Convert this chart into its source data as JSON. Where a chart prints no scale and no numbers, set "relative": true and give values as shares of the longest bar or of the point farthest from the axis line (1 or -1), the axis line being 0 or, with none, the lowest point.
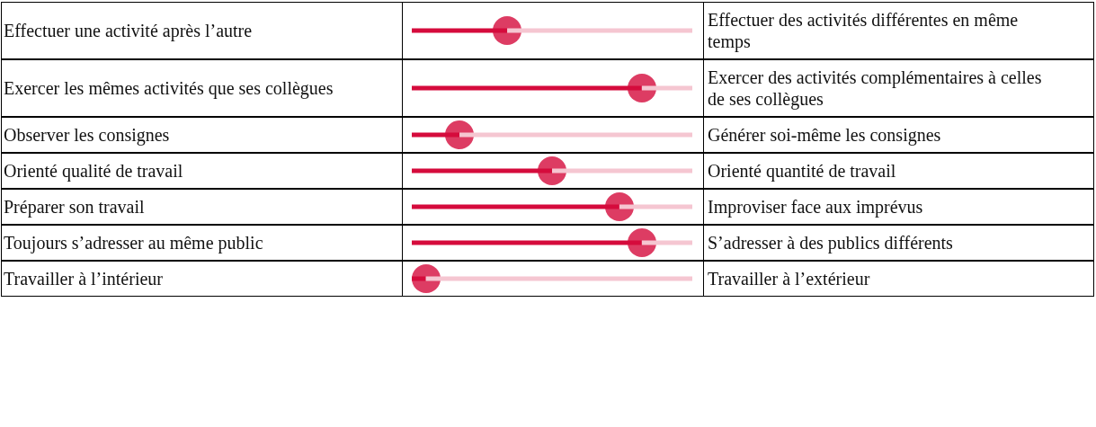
{
  "chart_data": {
    "type": "bar",
    "orientation": "horizontal",
    "stacked": true,
    "relative": true,
    "marker": "circle",
    "categories": [
      "Effectuer une activité après l’autre",
      "Exercer les mêmes activités que ses collègues",
      "Observer les consignes",
      "Orienté qualité de travail",
      "Préparer son travail",
      "Toujours s’adresser au même public",
      "Travailler à l’intérieur"
    ],
    "y2_categories": [
      "Effectuer des activités différentes en même temps",
      "Exercer des activités complémentaires à celles de ses collègues",
      "Générer soi-même les consignes",
      "Orienté quantité de travail",
      "Improviser face aux imprévus",
      "S’adresser à des publics différents",
      "Travailler à l’extérieur"
    ],
    "series": [
      {
        "color": "#d50b3c",
        "values": [
          0.34,
          0.82,
          0.17,
          0.5,
          0.74,
          0.82,
          0.05
        ]
      },
      {
        "color": "#f5c6d1",
        "values": [
          0.66,
          0.18,
          0.83,
          0.5,
          0.26,
          0.18,
          0.95
        ]
      }
    ]
  }
}
